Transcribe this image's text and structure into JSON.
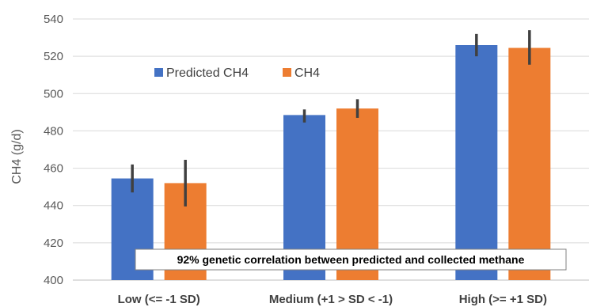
{
  "chart_data": {
    "type": "bar",
    "title": "",
    "xlabel": "",
    "ylabel": "CH4 (g/d)",
    "ylim": [
      400,
      540
    ],
    "yticks": [
      400,
      420,
      440,
      460,
      480,
      500,
      520,
      540
    ],
    "grid": true,
    "legend_position": "top-left",
    "categories": [
      "Low (<= -1 SD)",
      "Medium (+1 > SD < -1)",
      "High (>= +1 SD)"
    ],
    "series": [
      {
        "name": "Predicted CH4",
        "color": "#4472C4",
        "values": [
          454.5,
          488.5,
          526.0
        ],
        "error_low": [
          447.0,
          484.5,
          520.0
        ],
        "error_high": [
          462.0,
          491.5,
          532.0
        ]
      },
      {
        "name": "CH4",
        "color": "#ED7D31",
        "values": [
          452.0,
          492.0,
          524.5
        ],
        "error_low": [
          439.5,
          487.0,
          515.5
        ],
        "error_high": [
          464.5,
          497.0,
          534.0
        ]
      }
    ],
    "annotation": "92% genetic correlation between predicted and collected methane"
  }
}
